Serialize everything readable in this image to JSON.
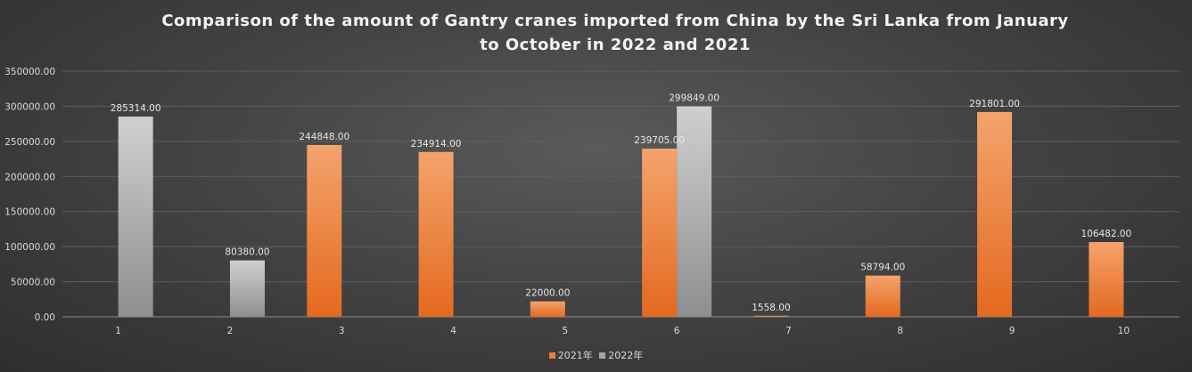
{
  "chart_data": {
    "type": "bar",
    "title": "Comparison of the amount of Gantry cranes imported from China by the Sri Lanka from January to October in 2022 and 2021",
    "categories": [
      "1",
      "2",
      "3",
      "4",
      "5",
      "6",
      "7",
      "8",
      "9",
      "10"
    ],
    "series": [
      {
        "name": "2021年",
        "color": "#ed7d31",
        "values": [
          null,
          null,
          244848.0,
          234914.0,
          22000.0,
          239705.0,
          1558.0,
          58794.0,
          291801.0,
          106482.0
        ],
        "labels": [
          "",
          "",
          "244848.00",
          "234914.00",
          "22000.00",
          "239705.00",
          "1558.00",
          "58794.00",
          "291801.00",
          "106482.00"
        ]
      },
      {
        "name": "2022年",
        "color": "#a5a5a5",
        "values": [
          285314.0,
          80380.0,
          null,
          null,
          null,
          299849.0,
          null,
          null,
          null,
          null
        ],
        "labels": [
          "285314.00",
          "80380.00",
          "",
          "",
          "",
          "299849.00",
          "",
          "",
          "",
          ""
        ]
      }
    ],
    "yticks": [
      "0.00",
      "50000.00",
      "100000.00",
      "150000.00",
      "200000.00",
      "250000.00",
      "300000.00",
      "350000.00"
    ],
    "ylim": [
      0,
      350000
    ],
    "xlabel": "",
    "ylabel": "",
    "grid": true,
    "legend_position": "bottom"
  }
}
